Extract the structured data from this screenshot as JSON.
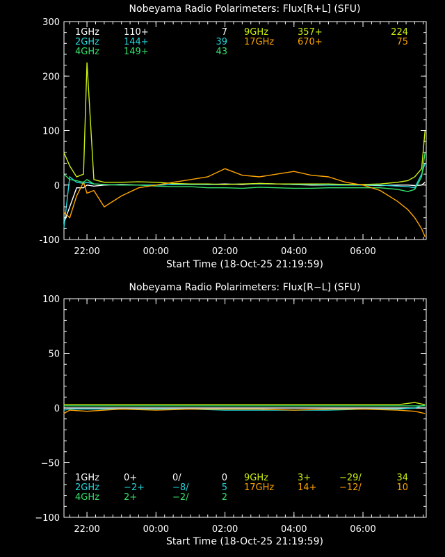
{
  "charts": [
    {
      "title": "Nobeyama Radio Polarimeters: Flux[R+L] (SFU)",
      "xlabel": "Start Time (18-Oct-25 21:19:59)",
      "yticks": [
        "300",
        "200",
        "100",
        "0",
        "-100"
      ],
      "xticks": [
        "22:00",
        "00:00",
        "02:00",
        "04:00",
        "06:00"
      ],
      "legend_left": [
        {
          "label": "1GHz",
          "a": "110+",
          "b": "",
          "c": "7",
          "color": "#ffffff"
        },
        {
          "label": "2GHz",
          "a": "144+",
          "b": "",
          "c": "39",
          "color": "#22d8dc"
        },
        {
          "label": "4GHz",
          "a": "149+",
          "b": "",
          "c": "43",
          "color": "#33e06a"
        }
      ],
      "legend_right": [
        {
          "label": "9GHz",
          "a": "357+",
          "b": "",
          "c": "224",
          "color": "#ccee11"
        },
        {
          "label": "17GHz",
          "a": "670+",
          "b": "",
          "c": "75",
          "color": "#ffa500"
        }
      ]
    },
    {
      "title": "Nobeyama Radio Polarimeters: Flux[R−L] (SFU)",
      "xlabel": "Start Time (18-Oct-25 21:19:59)",
      "yticks": [
        "100",
        "50",
        "0",
        "−50",
        "−100"
      ],
      "xticks": [
        "22:00",
        "00:00",
        "02:00",
        "04:00",
        "06:00"
      ],
      "legend_left": [
        {
          "label": "1GHz",
          "a": "0+",
          "b": "0/",
          "c": "0",
          "color": "#ffffff"
        },
        {
          "label": "2GHz",
          "a": "−2+",
          "b": "−8/",
          "c": "5",
          "color": "#22d8dc"
        },
        {
          "label": "4GHz",
          "a": "2+",
          "b": "−2/",
          "c": "2",
          "color": "#33e06a"
        }
      ],
      "legend_right": [
        {
          "label": "9GHz",
          "a": "3+",
          "b": "−29/",
          "c": "34",
          "color": "#ccee11"
        },
        {
          "label": "17GHz",
          "a": "14+",
          "b": "−12/",
          "c": "10",
          "color": "#ffa500"
        }
      ]
    }
  ],
  "chart_data": [
    {
      "type": "line",
      "title": "Nobeyama Radio Polarimeters: Flux[R+L] (SFU)",
      "xlabel": "Start Time (18-Oct-25 21:19:59)",
      "ylabel": "",
      "xlim": [
        "21:20",
        "07:50"
      ],
      "ylim": [
        -100,
        300
      ],
      "x_hours": [
        21.33,
        21.5,
        21.7,
        21.9,
        22.0,
        22.2,
        22.5,
        23.0,
        23.5,
        24.0,
        24.5,
        25.0,
        25.5,
        26.0,
        26.5,
        27.0,
        27.5,
        28.0,
        28.5,
        29.0,
        29.5,
        30.0,
        30.5,
        31.0,
        31.3,
        31.5,
        31.7,
        31.8
      ],
      "series": [
        {
          "name": "1GHz",
          "color": "#ffffff",
          "values": [
            -70,
            -40,
            -5,
            -5,
            0,
            -2,
            0,
            1,
            0,
            0,
            1,
            2,
            1,
            2,
            1,
            3,
            2,
            1,
            0,
            0,
            0,
            0,
            -1,
            0,
            0,
            -1,
            0,
            5
          ]
        },
        {
          "name": "2GHz",
          "color": "#22d8dc",
          "values": [
            -80,
            15,
            5,
            3,
            5,
            2,
            1,
            0,
            0,
            0,
            1,
            1,
            1,
            1,
            2,
            2,
            2,
            1,
            1,
            0,
            0,
            0,
            0,
            -2,
            -3,
            -5,
            20,
            40
          ]
        },
        {
          "name": "4GHz",
          "color": "#33e06a",
          "values": [
            20,
            10,
            8,
            5,
            10,
            2,
            1,
            0,
            0,
            -2,
            -3,
            -3,
            -5,
            -5,
            -6,
            -4,
            -5,
            -6,
            -6,
            -5,
            -5,
            -5,
            -5,
            -8,
            -12,
            -8,
            15,
            60
          ]
        },
        {
          "name": "9GHz",
          "color": "#ccee11",
          "values": [
            60,
            35,
            15,
            20,
            225,
            10,
            5,
            5,
            6,
            5,
            3,
            2,
            2,
            1,
            2,
            3,
            2,
            2,
            2,
            2,
            1,
            1,
            2,
            5,
            8,
            15,
            30,
            100
          ]
        },
        {
          "name": "17GHz",
          "color": "#ffa500",
          "values": [
            -50,
            -60,
            -20,
            5,
            -15,
            -10,
            -40,
            -20,
            -5,
            0,
            5,
            10,
            15,
            30,
            18,
            15,
            20,
            25,
            18,
            15,
            5,
            0,
            -10,
            -30,
            -45,
            -60,
            -80,
            -95
          ]
        }
      ]
    },
    {
      "type": "line",
      "title": "Nobeyama Radio Polarimeters: Flux[R−L] (SFU)",
      "xlabel": "Start Time (18-Oct-25 21:19:59)",
      "ylabel": "",
      "xlim": [
        "21:20",
        "07:50"
      ],
      "ylim": [
        -100,
        100
      ],
      "x_hours": [
        21.33,
        21.5,
        22.0,
        22.5,
        23.0,
        24.0,
        25.0,
        26.0,
        27.0,
        28.0,
        29.0,
        30.0,
        31.0,
        31.5,
        31.8
      ],
      "series": [
        {
          "name": "1GHz",
          "color": "#ffffff",
          "values": [
            0,
            0,
            0,
            0,
            0,
            0,
            0,
            0,
            0,
            0,
            0,
            0,
            0,
            0,
            0
          ]
        },
        {
          "name": "2GHz",
          "color": "#22d8dc",
          "values": [
            -2,
            -1,
            -1,
            -1,
            -1,
            -1,
            -1,
            -2,
            -2,
            -2,
            -2,
            -1,
            -1,
            0,
            3
          ]
        },
        {
          "name": "4GHz",
          "color": "#33e06a",
          "values": [
            2,
            2,
            2,
            2,
            2,
            2,
            2,
            2,
            2,
            2,
            2,
            2,
            2,
            2,
            2
          ]
        },
        {
          "name": "9GHz",
          "color": "#ccee11",
          "values": [
            3,
            3,
            3,
            3,
            3,
            3,
            3,
            3,
            3,
            3,
            3,
            3,
            3,
            5,
            3
          ]
        },
        {
          "name": "17GHz",
          "color": "#ffa500",
          "values": [
            -5,
            -2,
            -3,
            -2,
            -1,
            -2,
            -1,
            -1,
            -1,
            -2,
            -1,
            -1,
            -2,
            -3,
            -5
          ]
        }
      ]
    }
  ]
}
